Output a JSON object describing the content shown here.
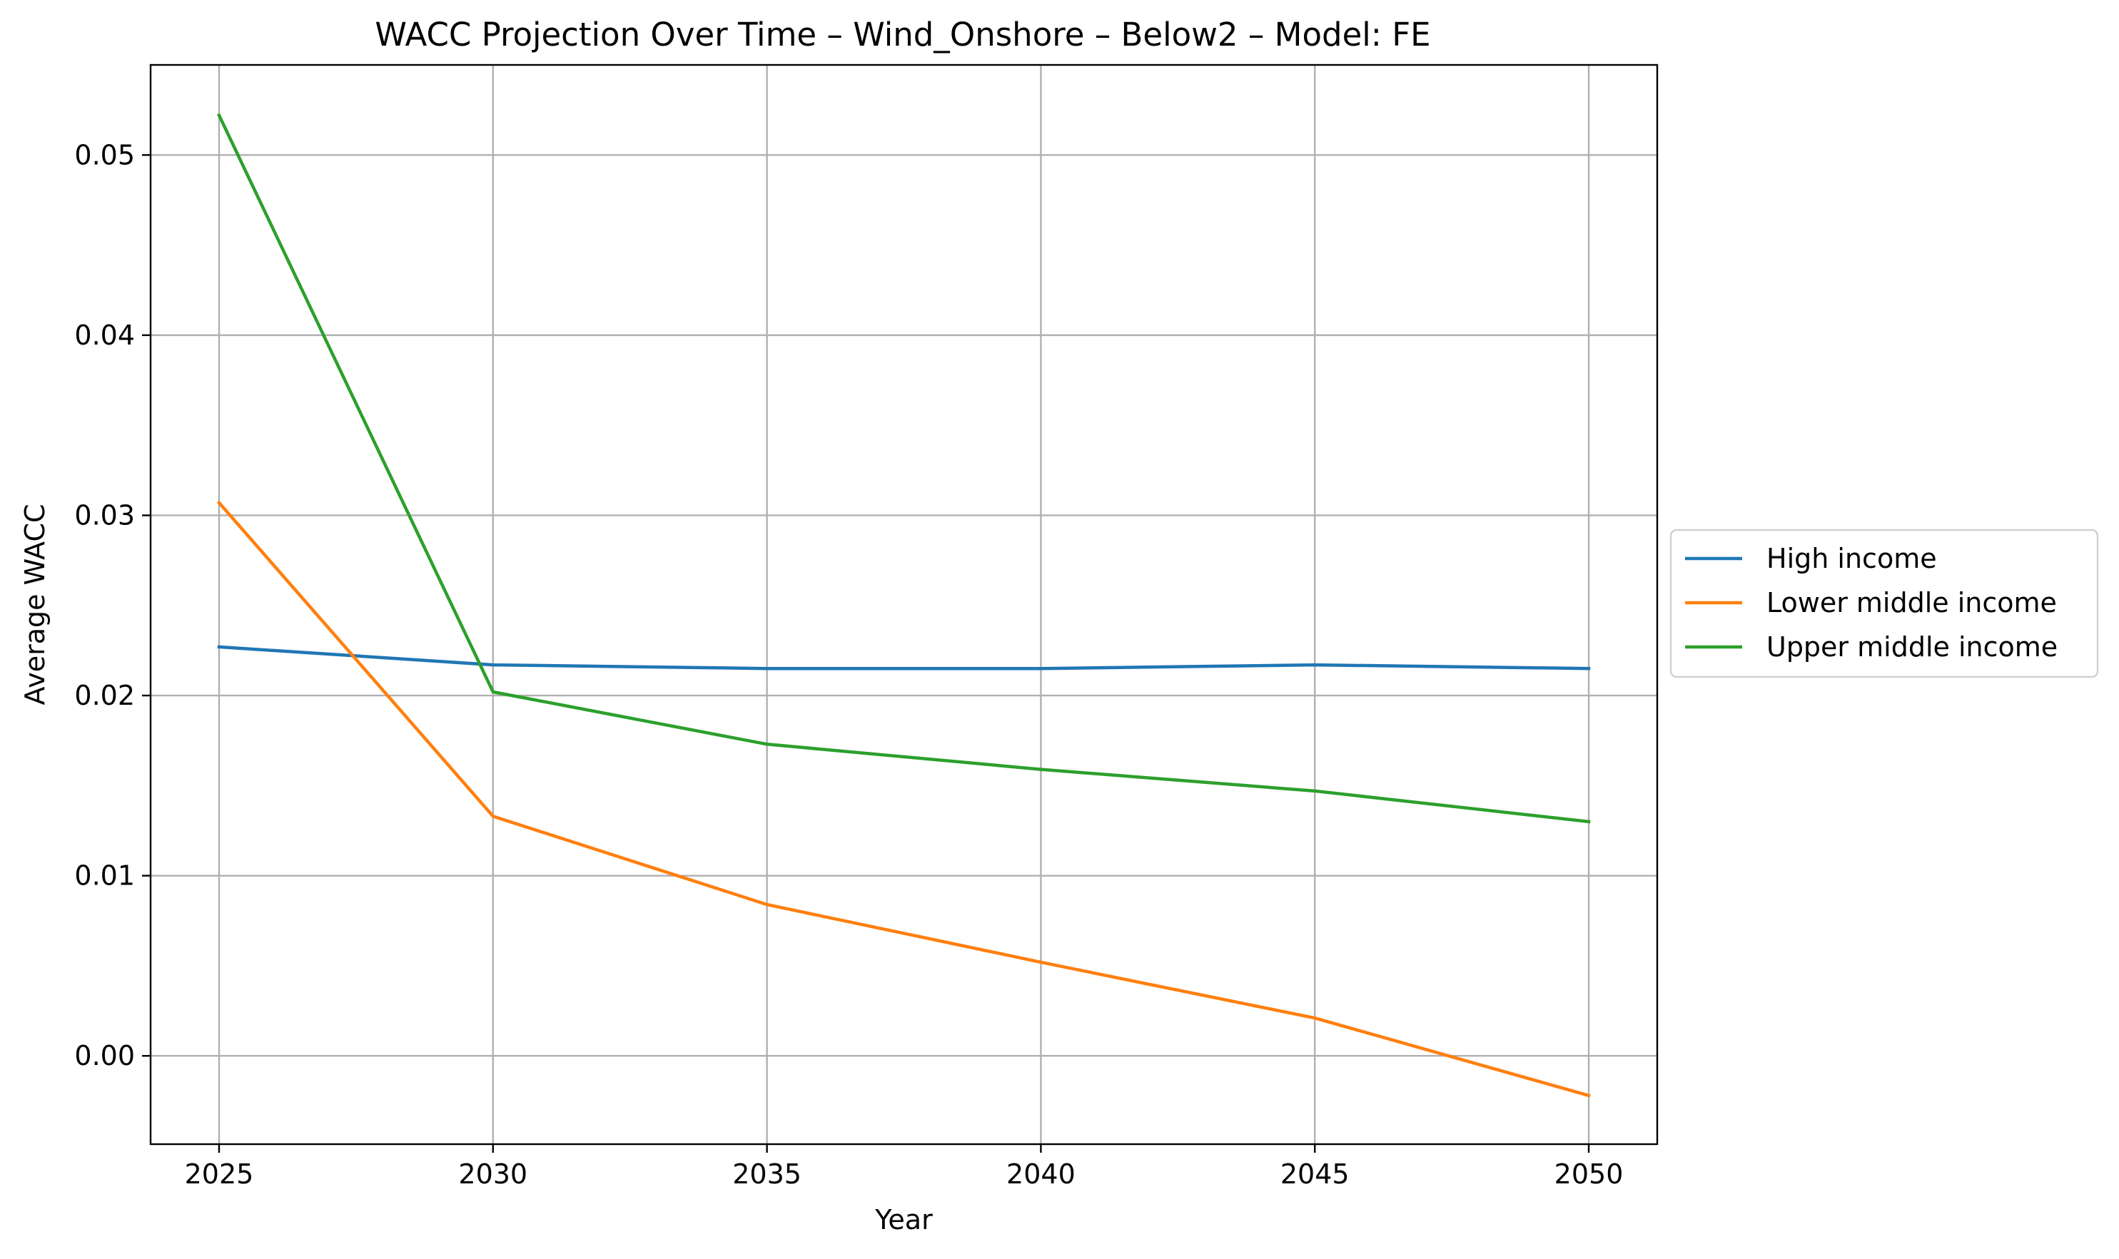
{
  "chart_data": {
    "type": "line",
    "title": "WACC Projection Over Time – Wind_Onshore – Below2 – Model: FE",
    "xlabel": "Year",
    "ylabel": "Average WACC",
    "x": [
      2025,
      2030,
      2035,
      2040,
      2045,
      2050
    ],
    "xlim": [
      2023.75,
      2051.25
    ],
    "ylim": [
      -0.0049,
      0.055
    ],
    "x_ticks": [
      "2025",
      "2030",
      "2035",
      "2040",
      "2045",
      "2050"
    ],
    "y_ticks": [
      {
        "value": 0.0,
        "label": "0.00"
      },
      {
        "value": 0.01,
        "label": "0.01"
      },
      {
        "value": 0.02,
        "label": "0.02"
      },
      {
        "value": 0.03,
        "label": "0.03"
      },
      {
        "value": 0.04,
        "label": "0.04"
      },
      {
        "value": 0.05,
        "label": "0.05"
      }
    ],
    "grid": true,
    "legend_position": "center-right-outside",
    "series": [
      {
        "name": "High income",
        "color": "#1f77b4",
        "values": [
          0.0227,
          0.0217,
          0.0215,
          0.0215,
          0.0217,
          0.0215
        ]
      },
      {
        "name": "Lower middle income",
        "color": "#ff7f0e",
        "values": [
          0.0307,
          0.0133,
          0.0084,
          0.0052,
          0.0021,
          -0.0022
        ]
      },
      {
        "name": "Upper middle income",
        "color": "#2ca02c",
        "values": [
          0.0522,
          0.0202,
          0.0173,
          0.0159,
          0.0147,
          0.013
        ]
      }
    ]
  }
}
